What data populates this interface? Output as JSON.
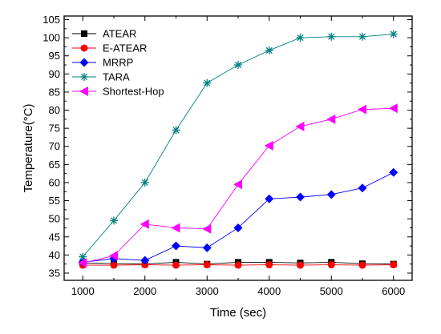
{
  "chart_data": {
    "type": "line",
    "title": "",
    "xlabel": "Time (sec)",
    "ylabel": "Temperature(°C)",
    "xlim": [
      700,
      6300
    ],
    "ylim": [
      33,
      106
    ],
    "xticks": [
      1000,
      2000,
      3000,
      4000,
      5000,
      6000
    ],
    "xticks_minor": [
      1500,
      2500,
      3500,
      4500,
      5500
    ],
    "yticks": [
      35,
      40,
      45,
      50,
      55,
      60,
      65,
      70,
      75,
      80,
      85,
      90,
      95,
      100,
      105
    ],
    "grid": false,
    "legend_position": "top-left",
    "x": [
      1000,
      1500,
      2000,
      2500,
      3000,
      3500,
      4000,
      4500,
      5000,
      5500,
      6000
    ],
    "series": [
      {
        "name": "ATEAR",
        "color": "#000000",
        "marker": "square",
        "values": [
          37.8,
          37.6,
          37.5,
          38.0,
          37.5,
          38.0,
          38.0,
          37.8,
          38.0,
          37.6,
          37.5
        ]
      },
      {
        "name": "E-ATEAR",
        "color": "#ff0000",
        "marker": "circle",
        "values": [
          37.2,
          37.2,
          37.3,
          37.2,
          37.3,
          37.2,
          37.3,
          37.2,
          37.3,
          37.2,
          37.3
        ]
      },
      {
        "name": "MRRP",
        "color": "#0000ff",
        "marker": "diamond",
        "values": [
          38.0,
          39.0,
          38.5,
          42.5,
          42.0,
          47.5,
          55.5,
          56.0,
          56.7,
          58.5,
          62.8
        ]
      },
      {
        "name": "TARA",
        "color": "#008080",
        "marker": "asterisk",
        "values": [
          39.5,
          49.5,
          60.0,
          74.5,
          87.5,
          92.5,
          96.5,
          100.0,
          100.3,
          100.3,
          101.0
        ]
      },
      {
        "name": "Shortest-Hop",
        "color": "#ff00ff",
        "marker": "triangle-left",
        "values": [
          37.8,
          39.8,
          48.5,
          47.5,
          47.2,
          59.5,
          70.2,
          75.5,
          77.5,
          80.2,
          80.5
        ]
      }
    ]
  }
}
